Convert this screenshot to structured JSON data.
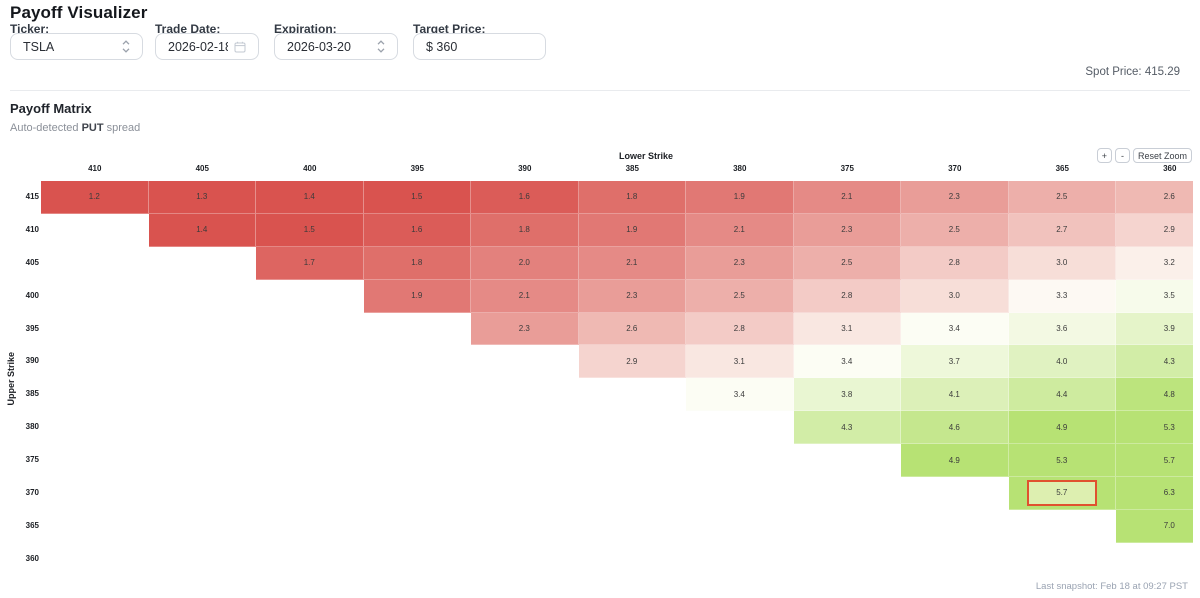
{
  "title": "Payoff Visualizer",
  "controls": {
    "ticker": {
      "label": "Ticker:",
      "value": "TSLA"
    },
    "trade_date": {
      "label": "Trade Date:",
      "value": "2026-02-18"
    },
    "expiration": {
      "label": "Expiration:",
      "value": "2026-03-20"
    },
    "target_price": {
      "label": "Target Price:",
      "value": "$ 360"
    }
  },
  "spot_price_label": "Spot Price: 415.29",
  "section": {
    "title": "Payoff Matrix",
    "subtitle_prefix": "Auto-detected ",
    "subtitle_strategy": "PUT",
    "subtitle_suffix": " spread"
  },
  "toolbar": {
    "zoom_in": "+",
    "zoom_out": "-",
    "reset": "Reset Zoom"
  },
  "footer": "Last snapshot: Feb 18 at 09:27 PST",
  "chart_data": {
    "type": "heatmap",
    "title": "Payoff Matrix",
    "xlabel": "Lower Strike",
    "ylabel": "Upper Strike",
    "columns": [
      410,
      405,
      400,
      395,
      390,
      385,
      380,
      375,
      370,
      365,
      360
    ],
    "rows": [
      415,
      410,
      405,
      400,
      395,
      390,
      385,
      380,
      375,
      370,
      365,
      360
    ],
    "values": [
      [
        1.2,
        1.3,
        1.4,
        1.5,
        1.6,
        1.8,
        1.9,
        2.1,
        2.3,
        2.5,
        2.6
      ],
      [
        null,
        1.4,
        1.5,
        1.6,
        1.8,
        1.9,
        2.1,
        2.3,
        2.5,
        2.7,
        2.9
      ],
      [
        null,
        null,
        1.7,
        1.8,
        2.0,
        2.1,
        2.3,
        2.5,
        2.8,
        3.0,
        3.2
      ],
      [
        null,
        null,
        null,
        1.9,
        2.1,
        2.3,
        2.5,
        2.8,
        3.0,
        3.3,
        3.5
      ],
      [
        null,
        null,
        null,
        null,
        2.3,
        2.6,
        2.8,
        3.1,
        3.4,
        3.6,
        3.9
      ],
      [
        null,
        null,
        null,
        null,
        null,
        2.9,
        3.1,
        3.4,
        3.7,
        4.0,
        4.3
      ],
      [
        null,
        null,
        null,
        null,
        null,
        null,
        3.4,
        3.8,
        4.1,
        4.4,
        4.8
      ],
      [
        null,
        null,
        null,
        null,
        null,
        null,
        null,
        4.3,
        4.6,
        4.9,
        5.3
      ],
      [
        null,
        null,
        null,
        null,
        null,
        null,
        null,
        null,
        4.9,
        5.3,
        5.7
      ],
      [
        null,
        null,
        null,
        null,
        null,
        null,
        null,
        null,
        null,
        5.7,
        6.3
      ],
      [
        null,
        null,
        null,
        null,
        null,
        null,
        null,
        null,
        null,
        null,
        7.0
      ],
      [
        null,
        null,
        null,
        null,
        null,
        null,
        null,
        null,
        null,
        null,
        null
      ]
    ],
    "highlight": {
      "row": 370,
      "col": 365,
      "value": 5.7
    },
    "color_scale": {
      "low_color": "#d9534f",
      "mid_color": "#fefef8",
      "high_color": "#b7e274",
      "low_value": 1.5,
      "mid_value": 3.35,
      "high_value": 4.9,
      "highlight_border": "#e0512f",
      "highlight_fill": "#ddefb0"
    },
    "legend": "none",
    "grid": false
  }
}
